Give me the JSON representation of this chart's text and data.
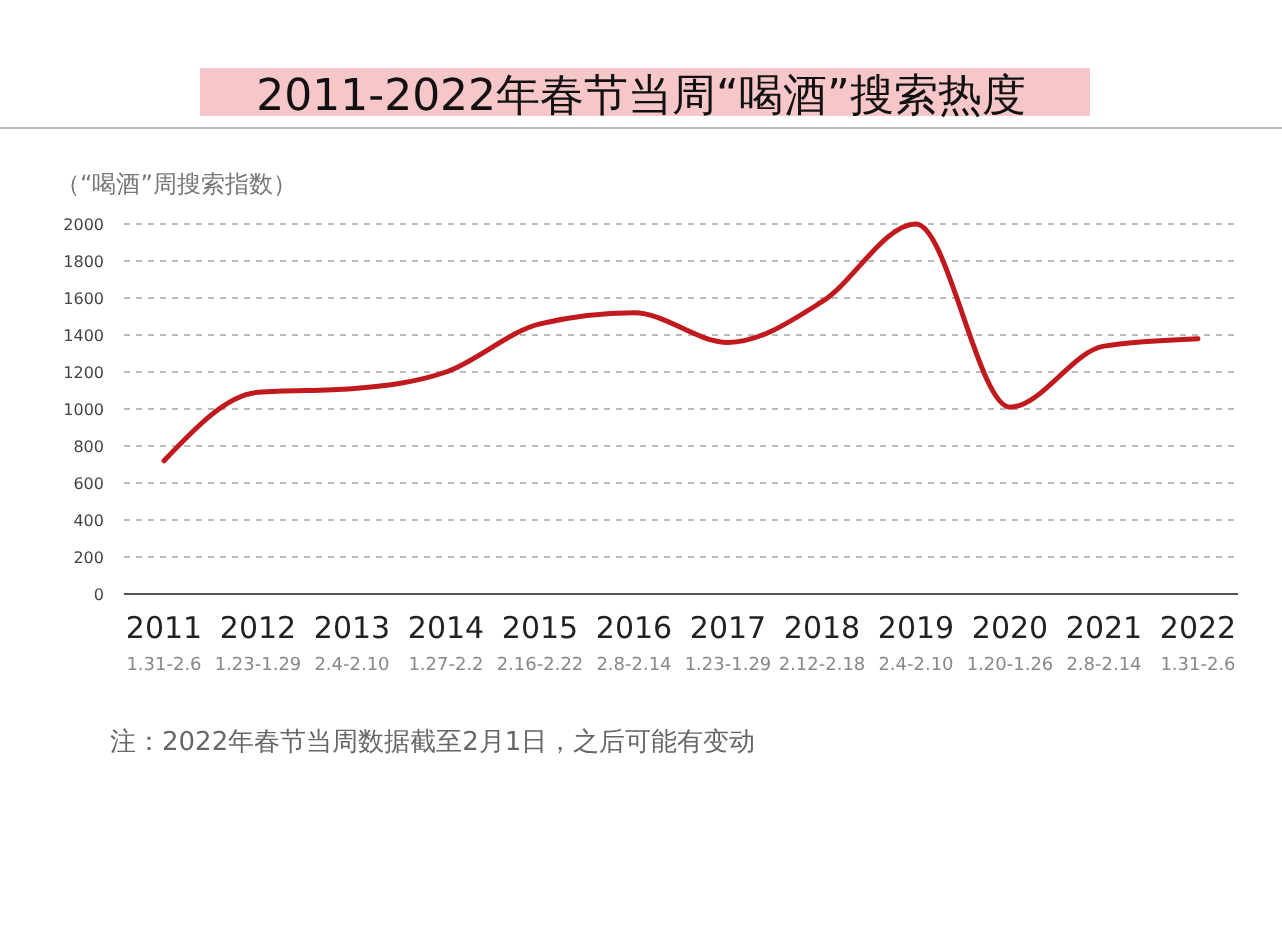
{
  "chart_data": {
    "type": "line",
    "title": "2011-2022年春节当周“喝酒”搜索热度",
    "ylabel": "（“喝酒”周搜索指数）",
    "categories": [
      "2011\n1.31-2.6",
      "2012\n1.23-1.29",
      "2013\n2.4-2.10",
      "2014\n1.27-2.2",
      "2015\n2.16-2.22",
      "2016\n2.8-2.14",
      "2017\n1.23-1.29",
      "2018\n2.12-2.18",
      "2019\n2.4-2.10",
      "2020\n1.20-1.26",
      "2021\n2.8-2.14",
      "2022\n1.31-2.6"
    ],
    "series": [
      {
        "color": "#c0191e",
        "values": [
          720,
          1090,
          1110,
          1200,
          1460,
          1520,
          1360,
          1580,
          2000,
          1010,
          1340,
          1380
        ]
      }
    ],
    "ylim": [
      0,
      2000
    ],
    "yticks": [
      0,
      200,
      400,
      600,
      800,
      1000,
      1200,
      1400,
      1600,
      1800,
      2000
    ],
    "grid": "y",
    "marker": "none",
    "line_style": "solid",
    "annotations": [
      "注：2022年春节当周数据截至2月1日，之后可能有变动"
    ]
  }
}
